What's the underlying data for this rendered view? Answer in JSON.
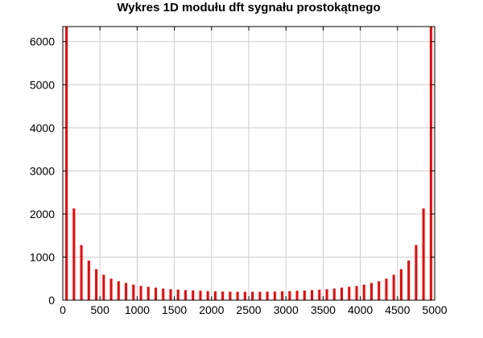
{
  "chart_data": {
    "type": "bar",
    "title": "Wykres 1D modułu dft sygnału prostokątnego",
    "xlabel": "",
    "ylabel": "",
    "xlim": [
      0,
      5000
    ],
    "ylim": [
      0,
      6350
    ],
    "x_ticks": [
      "0",
      "500",
      "1000",
      "1500",
      "2000",
      "2500",
      "3000",
      "3500",
      "4000",
      "4500",
      "5000"
    ],
    "y_ticks": [
      "0",
      "1000",
      "2000",
      "3000",
      "4000",
      "5000",
      "6000"
    ],
    "grid": true,
    "legend": "none",
    "color": "#ff0000",
    "series": [
      {
        "x": [
          50,
          150,
          250,
          350,
          450,
          550,
          650,
          750,
          850,
          950,
          1050,
          1150,
          1250,
          1350,
          1450,
          1550,
          1650,
          1750,
          1850,
          1950,
          2050,
          2150,
          2250,
          2350,
          2450,
          2550,
          2650,
          2750,
          2850,
          2950,
          3050,
          3150,
          3250,
          3350,
          3450,
          3550,
          3650,
          3750,
          3850,
          3950,
          4050,
          4150,
          4250,
          4350,
          4450,
          4550,
          4650,
          4750,
          4850,
          4950
        ],
        "values": [
          6350,
          2130,
          1280,
          920,
          720,
          590,
          500,
          440,
          400,
          360,
          330,
          310,
          290,
          270,
          255,
          245,
          235,
          225,
          220,
          210,
          205,
          200,
          198,
          196,
          195,
          195,
          196,
          198,
          200,
          205,
          210,
          220,
          225,
          235,
          245,
          255,
          270,
          290,
          310,
          330,
          360,
          400,
          440,
          500,
          590,
          720,
          920,
          1280,
          2130,
          6350
        ]
      }
    ]
  }
}
